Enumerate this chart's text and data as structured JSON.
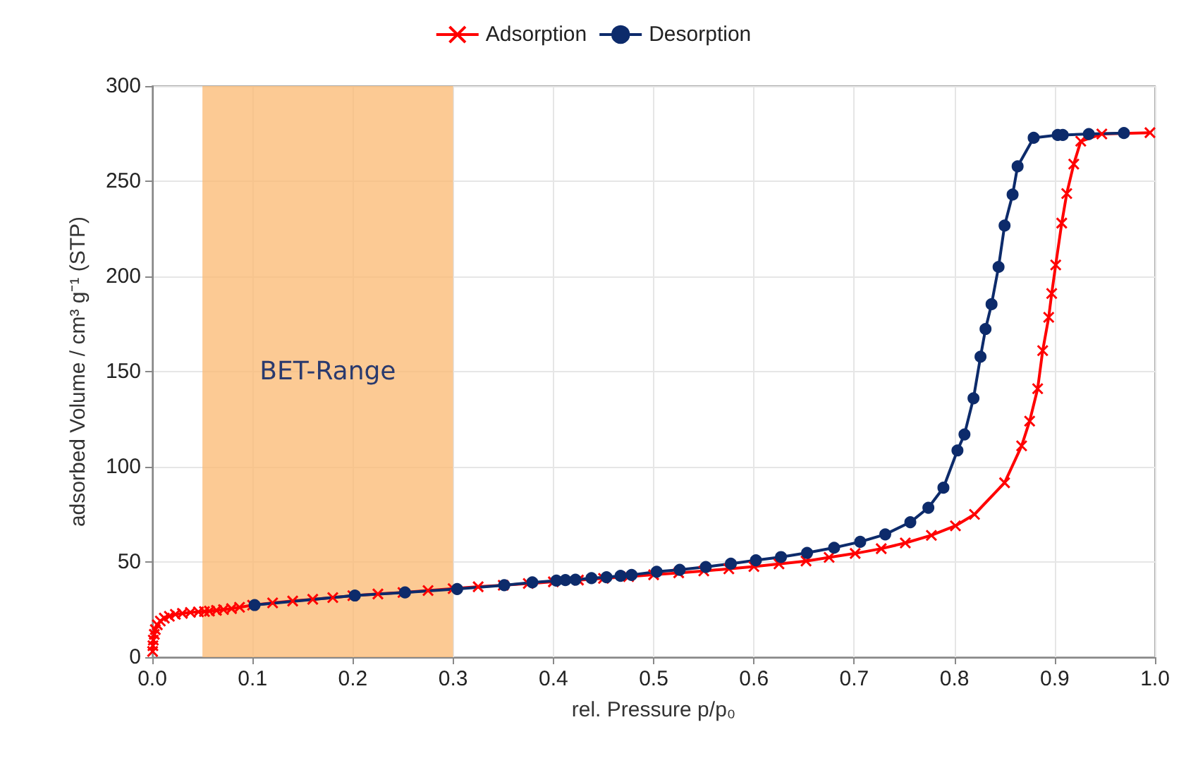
{
  "chart_data": {
    "type": "line",
    "xlabel": "rel. Pressure p/p₀",
    "ylabel": "adsorbed Volume / cm³ g⁻¹ (STP)",
    "xlim": [
      0,
      1
    ],
    "ylim": [
      0,
      300
    ],
    "xticks": [
      {
        "value": 0,
        "label": "0.0"
      },
      0.1,
      0.2,
      0.3,
      0.4,
      0.5,
      0.6,
      0.7,
      0.8,
      0.9,
      {
        "value": 1,
        "label": "1.0"
      }
    ],
    "yticks": [
      0,
      50,
      100,
      150,
      200,
      250,
      300
    ],
    "grid": true,
    "legend": "top",
    "bands": [
      {
        "axis": "x",
        "from": 0.05,
        "to": 0.3,
        "label": "BET-Range",
        "color": "#fbb870"
      }
    ],
    "series": [
      {
        "name": "Adsorption",
        "color": "#ff0000",
        "marker": "cross",
        "x": [
          0.0003,
          0.0006,
          0.001,
          0.002,
          0.003,
          0.005,
          0.008,
          0.012,
          0.017,
          0.023,
          0.03,
          0.038,
          0.046,
          0.052,
          0.057,
          0.064,
          0.071,
          0.079,
          0.087,
          0.1,
          0.12,
          0.14,
          0.16,
          0.18,
          0.2,
          0.225,
          0.25,
          0.275,
          0.3,
          0.325,
          0.35,
          0.375,
          0.4,
          0.425,
          0.45,
          0.475,
          0.5,
          0.525,
          0.55,
          0.575,
          0.6,
          0.625,
          0.652,
          0.675,
          0.701,
          0.727,
          0.751,
          0.777,
          0.801,
          0.82,
          0.85,
          0.867,
          0.875,
          0.883,
          0.888,
          0.894,
          0.897,
          0.901,
          0.907,
          0.912,
          0.919,
          0.926,
          0.947,
          0.995
        ],
        "values": [
          3,
          6,
          9,
          12,
          14.5,
          17,
          19,
          20.5,
          21.5,
          22.5,
          23,
          23.5,
          23.8,
          24,
          24.2,
          24.6,
          25,
          25.5,
          26.2,
          27.3,
          28.5,
          29.5,
          30.4,
          31.3,
          32.3,
          33.2,
          34,
          35,
          36,
          37,
          37.8,
          38.7,
          39.6,
          40.5,
          41.4,
          42.3,
          43.3,
          44.3,
          45.3,
          46.4,
          47.6,
          49,
          50.5,
          52.4,
          54.5,
          57,
          60,
          64,
          69,
          75,
          91.6,
          111,
          124,
          141,
          161,
          178.5,
          191,
          206,
          228,
          243.5,
          259,
          271,
          274.8,
          275.5
        ]
      },
      {
        "name": "Desorption",
        "color": "#0d2b6b",
        "marker": "circle",
        "x": [
          0.102,
          0.202,
          0.252,
          0.304,
          0.351,
          0.379,
          0.403,
          0.412,
          0.422,
          0.438,
          0.453,
          0.467,
          0.478,
          0.503,
          0.526,
          0.552,
          0.577,
          0.602,
          0.627,
          0.653,
          0.68,
          0.706,
          0.731,
          0.756,
          0.774,
          0.789,
          0.803,
          0.81,
          0.819,
          0.826,
          0.831,
          0.837,
          0.844,
          0.85,
          0.858,
          0.863,
          0.879,
          0.903,
          0.908,
          0.934,
          0.969
        ],
        "values": [
          27.4,
          32.4,
          34,
          35.8,
          37.8,
          39.3,
          40.2,
          40.5,
          40.7,
          41.5,
          42,
          42.7,
          43.2,
          44.9,
          45.9,
          47.4,
          49.1,
          50.9,
          52.6,
          54.8,
          57.5,
          60.6,
          64.5,
          70.9,
          78.5,
          89,
          108.6,
          117,
          136,
          157.8,
          172.4,
          185.4,
          205,
          226.7,
          243,
          257.8,
          272.8,
          274.3,
          274.3,
          274.8,
          275.3
        ]
      }
    ]
  }
}
